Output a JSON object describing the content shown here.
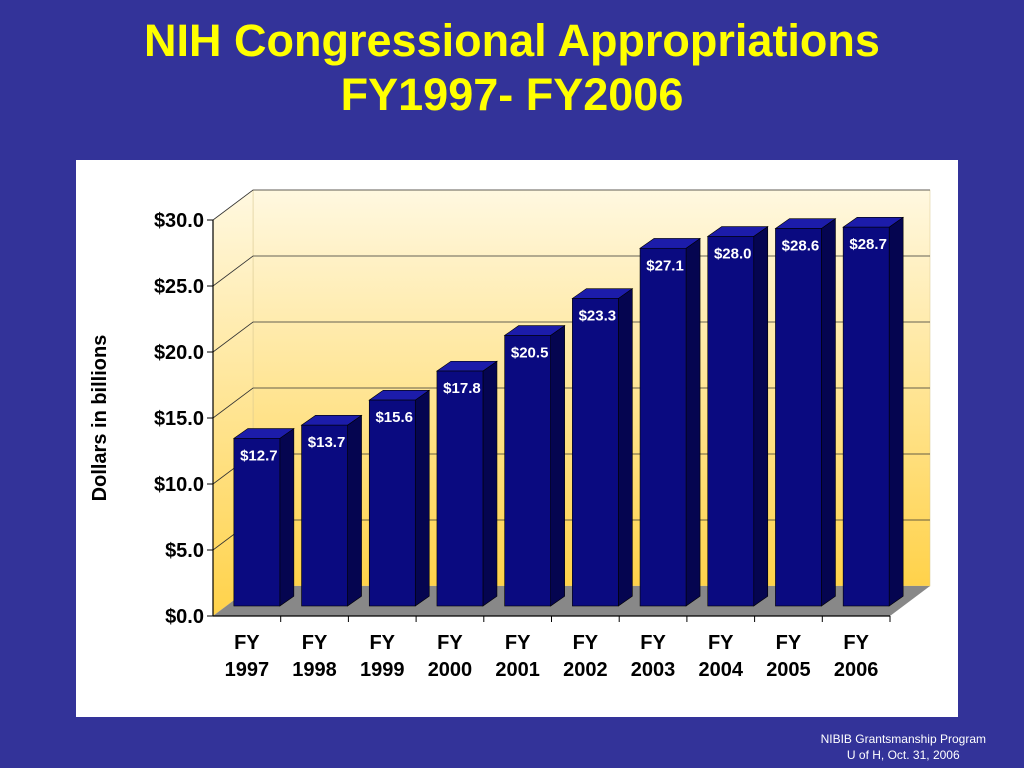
{
  "slide": {
    "title_line1": "NIH Congressional Appropriations",
    "title_line2": "FY1997- FY2006",
    "footer_line1": "NIBIB Grantsmanship Program",
    "footer_line2": "U of H, Oct. 31, 2006"
  },
  "colors": {
    "background": "#333399",
    "title": "#ffff00",
    "bar_front": "#0a0a80",
    "bar_top": "#1c1caa",
    "bar_side": "#050550",
    "wall_top": "#fff8e0",
    "wall_bottom": "#ffd24a",
    "floor": "#888888"
  },
  "chart_data": {
    "type": "bar",
    "title": "",
    "xlabel": "",
    "ylabel": "Dollars in billions",
    "ylim": [
      0,
      30
    ],
    "yticks": [
      0,
      5,
      10,
      15,
      20,
      25,
      30
    ],
    "ytick_labels": [
      "$0.0",
      "$5.0",
      "$10.0",
      "$15.0",
      "$20.0",
      "$25.0",
      "$30.0"
    ],
    "categories": [
      [
        "FY",
        "1997"
      ],
      [
        "FY",
        "1998"
      ],
      [
        "FY",
        "1999"
      ],
      [
        "FY",
        "2000"
      ],
      [
        "FY",
        "2001"
      ],
      [
        "FY",
        "2002"
      ],
      [
        "FY",
        "2003"
      ],
      [
        "FY",
        "2004"
      ],
      [
        "FY",
        "2005"
      ],
      [
        "FY",
        "2006"
      ]
    ],
    "values": [
      12.7,
      13.7,
      15.6,
      17.8,
      20.5,
      23.3,
      27.1,
      28.0,
      28.6,
      28.7
    ],
    "data_labels": [
      "$12.7",
      "$13.7",
      "$15.6",
      "$17.8",
      "$20.5",
      "$23.3",
      "$27.1",
      "$28.0",
      "$28.6",
      "$28.7"
    ],
    "grid": true,
    "legend": "none"
  }
}
